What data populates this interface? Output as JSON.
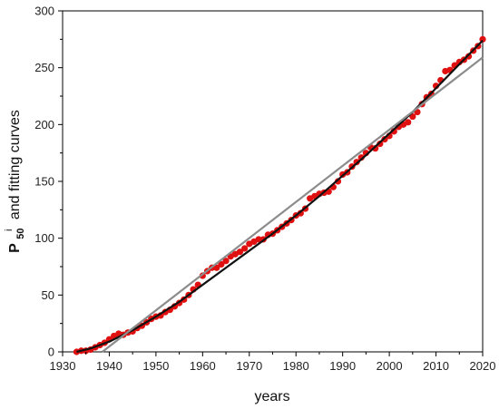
{
  "chart_data": {
    "type": "scatter",
    "title": "",
    "xlabel": "years",
    "ylabel": {
      "symbol": "P",
      "subscript": "50",
      "superscript": "i",
      "text": "and fitting curves"
    },
    "xlim": [
      1930,
      2020
    ],
    "ylim": [
      0,
      300
    ],
    "x_ticks": [
      1930,
      1940,
      1950,
      1960,
      1970,
      1980,
      1990,
      2000,
      2010,
      2020
    ],
    "y_ticks": [
      0,
      50,
      100,
      150,
      200,
      250,
      300
    ],
    "x_tick_labels": [
      "1930",
      "1940",
      "1950",
      "1960",
      "1970",
      "1980",
      "1990",
      "2000",
      "2010",
      "2020"
    ],
    "y_tick_labels": [
      "0",
      "50",
      "100",
      "150",
      "200",
      "250",
      "300"
    ],
    "grid": false,
    "series": [
      {
        "kind": "scatter",
        "color": "#e01010",
        "x": [
          1933,
          1934,
          1935,
          1936,
          1937,
          1938,
          1939,
          1940,
          1941,
          1942,
          1943,
          1944,
          1945,
          1946,
          1947,
          1948,
          1949,
          1950,
          1951,
          1952,
          1953,
          1954,
          1955,
          1956,
          1957,
          1958,
          1959,
          1960,
          1961,
          1962,
          1963,
          1964,
          1965,
          1966,
          1967,
          1968,
          1969,
          1970,
          1971,
          1972,
          1973,
          1974,
          1975,
          1976,
          1977,
          1978,
          1979,
          1980,
          1981,
          1982,
          1983,
          1984,
          1985,
          1986,
          1987,
          1988,
          1989,
          1990,
          1991,
          1992,
          1993,
          1994,
          1995,
          1996,
          1997,
          1998,
          1999,
          2000,
          2001,
          2002,
          2003,
          2004,
          2005,
          2006,
          2007,
          2008,
          2009,
          2010,
          2011,
          2012,
          2013,
          2014,
          2015,
          2016,
          2017,
          2018,
          2019,
          2020
        ],
        "y": [
          0,
          1,
          1,
          2,
          4,
          6,
          8,
          11,
          14,
          16,
          15,
          17,
          18,
          21,
          23,
          26,
          29,
          31,
          32,
          35,
          37,
          40,
          43,
          46,
          50,
          55,
          59,
          67,
          71,
          74,
          74,
          77,
          80,
          84,
          86,
          88,
          91,
          95,
          97,
          99,
          99,
          103,
          104,
          107,
          110,
          113,
          116,
          120,
          122,
          126,
          135,
          137,
          139,
          140,
          141,
          145,
          150,
          156,
          158,
          163,
          167,
          171,
          175,
          180,
          179,
          183,
          187,
          190,
          194,
          198,
          200,
          202,
          207,
          211,
          218,
          224,
          227,
          234,
          239,
          247,
          248,
          252,
          255,
          257,
          260,
          265,
          269,
          275
        ]
      },
      {
        "kind": "line",
        "color": "#111111",
        "x": [
          1933,
          1936,
          1940,
          1945,
          1950,
          1955,
          1960,
          1965,
          1970,
          1975,
          1980,
          1985,
          1990,
          1995,
          2000,
          2005,
          2010,
          2015,
          2020
        ],
        "y": [
          0,
          3,
          9,
          19,
          31,
          44,
          59,
          74,
          89,
          104,
          120,
          137,
          155,
          173,
          192,
          211,
          232,
          253,
          274
        ]
      },
      {
        "kind": "line",
        "color": "#8c8c8c",
        "x": [
          1938.5,
          2020
        ],
        "y": [
          0,
          259
        ]
      }
    ]
  }
}
